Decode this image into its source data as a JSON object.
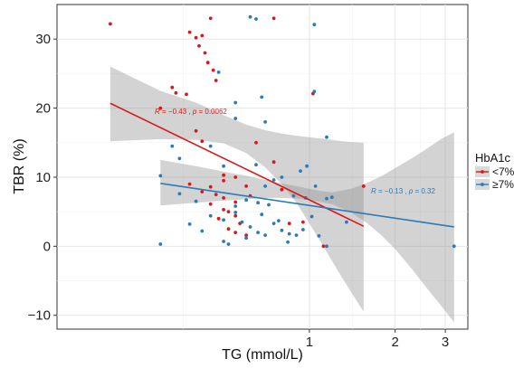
{
  "chart_data": {
    "type": "scatter",
    "title": "",
    "xlabel": "TG (mmol/L)",
    "ylabel": "TBR (%)",
    "x_log_scale": true,
    "xlim": [
      0.13,
      3.6
    ],
    "ylim": [
      -12,
      35
    ],
    "x_ticks": [
      1,
      2,
      3
    ],
    "y_ticks": [
      -10,
      0,
      10,
      20,
      30
    ],
    "x_tick_labels": [
      "1",
      "2",
      "3"
    ],
    "y_tick_labels": [
      "−10",
      "0",
      "10",
      "20",
      "30"
    ],
    "grid": true,
    "legend": {
      "title": "HbA1c",
      "placement": "right"
    },
    "series": [
      {
        "name": "<7%",
        "color": "#d7191c",
        "annotation": {
          "r_label": "R",
          "r": "= −0.43",
          "p_label": "p",
          "p": "= 0.0062"
        },
        "regression": {
          "x_start": 0.2,
          "x_end": 1.55,
          "y_start": 20.7,
          "y_end": 2.9
        },
        "band": {
          "x": [
            0.2,
            0.3,
            0.4,
            0.5,
            0.6,
            0.7,
            0.8,
            0.9,
            1.0,
            1.1,
            1.2,
            1.3,
            1.4,
            1.55
          ],
          "upper": [
            26.0,
            22.5,
            20.8,
            19.0,
            17.6,
            16.8,
            16.3,
            16.0,
            15.8,
            15.6,
            15.4,
            15.2,
            15.1,
            15.0
          ],
          "lower": [
            15.2,
            15.5,
            15.4,
            14.9,
            13.5,
            11.4,
            9.0,
            6.3,
            3.3,
            0.5,
            -2.1,
            -4.5,
            -6.6,
            -9.5
          ]
        },
        "points": [
          [
            0.2,
            32.2
          ],
          [
            0.33,
            23.0
          ],
          [
            0.34,
            22.2
          ],
          [
            0.38,
            31.0
          ],
          [
            0.4,
            30.2
          ],
          [
            0.41,
            29.0
          ],
          [
            0.42,
            30.5
          ],
          [
            0.43,
            28.0
          ],
          [
            0.44,
            26.6
          ],
          [
            0.45,
            33.0
          ],
          [
            0.46,
            25.5
          ],
          [
            0.47,
            24.0
          ],
          [
            0.75,
            33.0
          ],
          [
            0.37,
            22.0
          ],
          [
            0.3,
            20.0
          ],
          [
            0.4,
            16.7
          ],
          [
            0.42,
            15.2
          ],
          [
            0.5,
            10.3
          ],
          [
            0.55,
            10.0
          ],
          [
            0.5,
            9.5
          ],
          [
            0.45,
            8.6
          ],
          [
            0.6,
            8.7
          ],
          [
            0.65,
            15.0
          ],
          [
            0.75,
            12.2
          ],
          [
            0.8,
            8.2
          ],
          [
            0.47,
            7.5
          ],
          [
            0.5,
            7.0
          ],
          [
            0.55,
            6.4
          ],
          [
            0.45,
            6.1
          ],
          [
            0.5,
            5.3
          ],
          [
            0.52,
            5.0
          ],
          [
            0.55,
            4.4
          ],
          [
            0.57,
            3.3
          ],
          [
            0.55,
            2.0
          ],
          [
            0.6,
            1.6
          ],
          [
            0.85,
            3.3
          ],
          [
            0.95,
            3.5
          ],
          [
            1.03,
            22.1
          ],
          [
            1.12,
            0.0
          ],
          [
            1.55,
            8.7
          ],
          [
            0.62,
            7.3
          ],
          [
            0.48,
            4.0
          ],
          [
            0.52,
            2.5
          ],
          [
            0.42,
            7.9
          ],
          [
            0.38,
            9.0
          ]
        ]
      },
      {
        "name": "≥7%",
        "color": "#2b7bba",
        "annotation": {
          "r_label": "R",
          "r": "= −0.13",
          "p_label": "p",
          "p": "= 0.32"
        },
        "regression": {
          "x_start": 0.3,
          "x_end": 3.22,
          "y_start": 9.1,
          "y_end": 2.8
        },
        "band": {
          "x": [
            0.3,
            0.4,
            0.5,
            0.6,
            0.7,
            0.8,
            0.9,
            1.0,
            1.1,
            1.2,
            1.4,
            1.6,
            1.8,
            2.0,
            2.3,
            2.6,
            2.9,
            3.22
          ],
          "upper": [
            12.5,
            11.6,
            10.8,
            10.2,
            9.6,
            9.1,
            8.7,
            8.3,
            8.0,
            7.8,
            8.3,
            9.2,
            10.2,
            11.3,
            12.8,
            14.2,
            15.5,
            16.5
          ],
          "lower": [
            5.9,
            6.3,
            6.6,
            6.8,
            7.0,
            7.0,
            6.9,
            6.7,
            6.4,
            6.1,
            4.9,
            3.3,
            1.5,
            -0.4,
            -3.4,
            -6.2,
            -8.6,
            -11.0
          ]
        },
        "points": [
          [
            0.62,
            33.2
          ],
          [
            0.65,
            32.9
          ],
          [
            1.04,
            32.1
          ],
          [
            0.48,
            25.2
          ],
          [
            0.68,
            21.6
          ],
          [
            0.55,
            20.8
          ],
          [
            1.04,
            22.4
          ],
          [
            0.55,
            18.5
          ],
          [
            0.7,
            18.0
          ],
          [
            1.15,
            15.8
          ],
          [
            0.33,
            14.5
          ],
          [
            0.45,
            14.5
          ],
          [
            0.35,
            12.7
          ],
          [
            0.5,
            11.6
          ],
          [
            0.65,
            11.8
          ],
          [
            0.3,
            10.2
          ],
          [
            0.93,
            10.9
          ],
          [
            0.98,
            11.6
          ],
          [
            0.35,
            7.6
          ],
          [
            0.4,
            6.5
          ],
          [
            0.55,
            5.8
          ],
          [
            0.6,
            6.7
          ],
          [
            0.66,
            6.3
          ],
          [
            0.72,
            6.0
          ],
          [
            0.7,
            8.7
          ],
          [
            0.75,
            9.6
          ],
          [
            0.8,
            10.0
          ],
          [
            0.88,
            7.3
          ],
          [
            0.97,
            7.0
          ],
          [
            1.05,
            8.7
          ],
          [
            1.2,
            7.1
          ],
          [
            1.15,
            6.9
          ],
          [
            1.35,
            3.5
          ],
          [
            0.38,
            3.2
          ],
          [
            0.45,
            4.4
          ],
          [
            0.5,
            3.8
          ],
          [
            0.55,
            4.9
          ],
          [
            0.58,
            3.5
          ],
          [
            0.62,
            2.8
          ],
          [
            0.66,
            2.0
          ],
          [
            0.7,
            1.6
          ],
          [
            0.75,
            3.3
          ],
          [
            0.78,
            3.7
          ],
          [
            0.8,
            2.3
          ],
          [
            0.85,
            1.8
          ],
          [
            0.9,
            1.6
          ],
          [
            0.95,
            2.4
          ],
          [
            1.08,
            1.5
          ],
          [
            0.3,
            0.3
          ],
          [
            0.5,
            0.7
          ],
          [
            0.52,
            0.3
          ],
          [
            1.15,
            0.0
          ],
          [
            1.02,
            4.3
          ],
          [
            3.22,
            0.0
          ],
          [
            0.6,
            1.2
          ],
          [
            0.68,
            4.6
          ],
          [
            0.84,
            0.6
          ],
          [
            0.42,
            2.2
          ]
        ]
      }
    ]
  }
}
